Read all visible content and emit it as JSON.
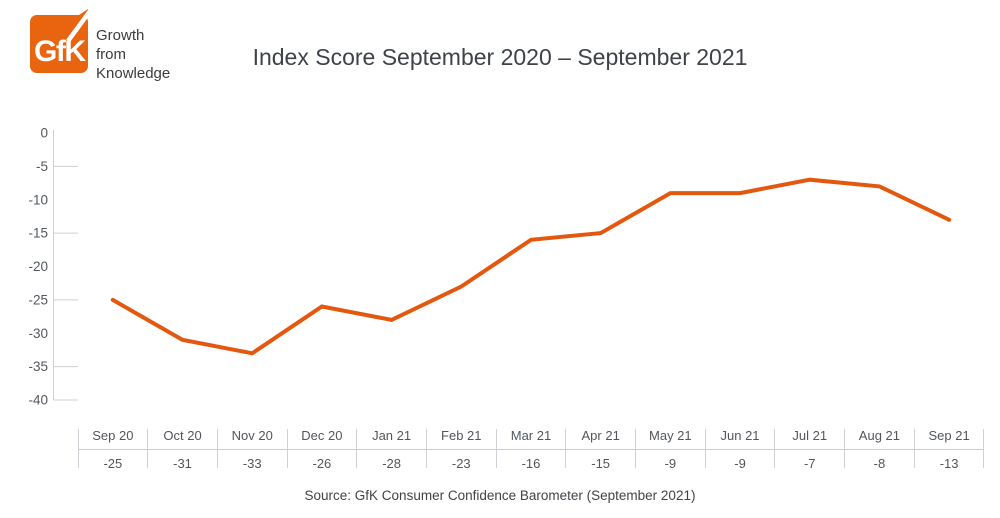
{
  "header": {
    "logo_text": "GfK",
    "tagline_lines": [
      "Growth",
      "from",
      "Knowledge"
    ],
    "title": "Index Score September 2020 – September 2021"
  },
  "chart_data": {
    "type": "line",
    "title": "Index Score September 2020 – September 2021",
    "series_name": "Index Score",
    "categories": [
      "Sep 20",
      "Oct 20",
      "Nov 20",
      "Dec 20",
      "Jan 21",
      "Feb 21",
      "Mar 21",
      "Apr 21",
      "May 21",
      "Jun 21",
      "Jul 21",
      "Aug 21",
      "Sep 21"
    ],
    "values": [
      -25,
      -31,
      -33,
      -26,
      -28,
      -23,
      -16,
      -15,
      -9,
      -9,
      -7,
      -8,
      -13
    ],
    "ylim": [
      -40,
      0
    ],
    "yticks": [
      0,
      -5,
      -10,
      -15,
      -20,
      -25,
      -30,
      -35,
      -40
    ],
    "grid": false,
    "legend": "none",
    "line_color": "#e4570e"
  },
  "footer": {
    "source": "Source: GfK Consumer Confidence Barometer (September 2021)"
  },
  "colors": {
    "brand_orange": "#e8640e",
    "line_orange": "#e4570e",
    "axis_gray": "#cdd0d4",
    "title_text": "#3e4349",
    "label_text": "#51565c"
  }
}
